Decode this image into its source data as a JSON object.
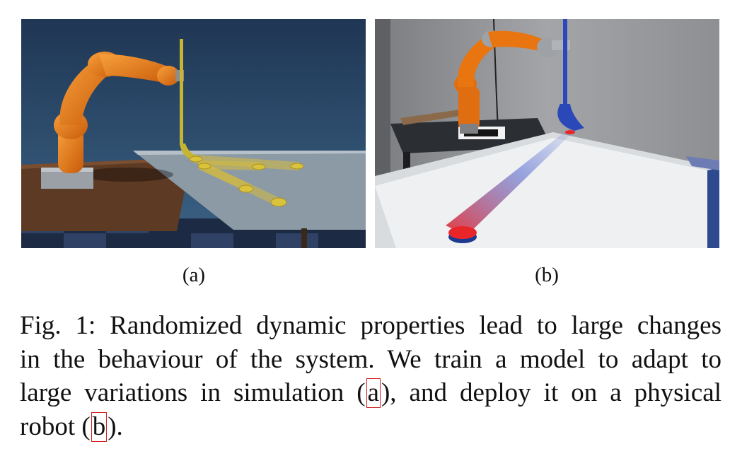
{
  "figure": {
    "subfigures": [
      {
        "label": "(a)"
      },
      {
        "label": "(b)"
      }
    ],
    "caption": {
      "lines": [
        "Fig. 1: Randomized dynamic properties lead to large changes",
        "in the behaviour of the system. We train a model to adapt to"
      ],
      "line3_before": "large variations in simulation (",
      "ref_a": "a",
      "line3_after": "), and deploy it on a physical",
      "line4_before": "robot (",
      "ref_b": "b",
      "line4_after": ")."
    },
    "colors": {
      "robot_orange": "#e87510",
      "sim_background": "#2c4866",
      "puck_red": "#e8262a",
      "link_box": "#d21f1f"
    }
  }
}
